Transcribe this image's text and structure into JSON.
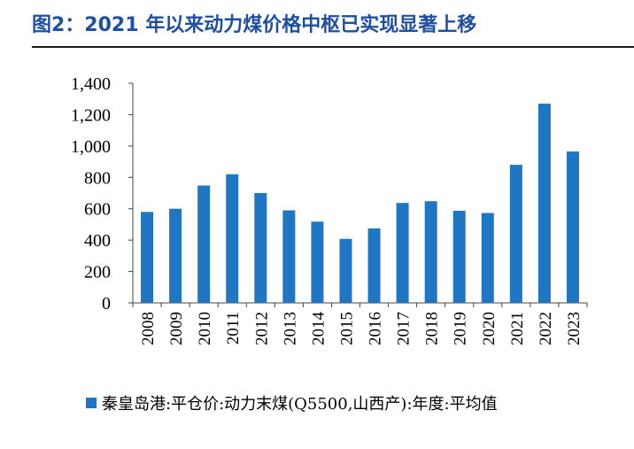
{
  "figure": {
    "title": "图2：2021 年以来动力煤价格中枢已实现显著上移",
    "title_color": "#1f4fa3"
  },
  "chart_data": {
    "type": "bar",
    "categories": [
      "2008",
      "2009",
      "2010",
      "2011",
      "2012",
      "2013",
      "2014",
      "2015",
      "2016",
      "2017",
      "2018",
      "2019",
      "2020",
      "2021",
      "2022",
      "2023"
    ],
    "series": [
      {
        "name": "秦皇岛港:平仓价:动力末煤(Q5500,山西产):年度:平均值",
        "values": [
          580,
          600,
          748,
          820,
          700,
          590,
          518,
          408,
          475,
          637,
          648,
          587,
          573,
          880,
          1270,
          965
        ],
        "color": "#1f77c4"
      }
    ],
    "title": "图2：2021 年以来动力煤价格中枢已实现显著上移",
    "xlabel": "",
    "ylabel": "",
    "ylim": [
      0,
      1400
    ],
    "yticks": [
      0,
      200,
      400,
      600,
      800,
      1000,
      1200,
      1400
    ],
    "ytick_labels": [
      "0",
      "200",
      "400",
      "600",
      "800",
      "1,000",
      "1,200",
      "1,400"
    ],
    "grid": false,
    "legend_position": "bottom"
  }
}
